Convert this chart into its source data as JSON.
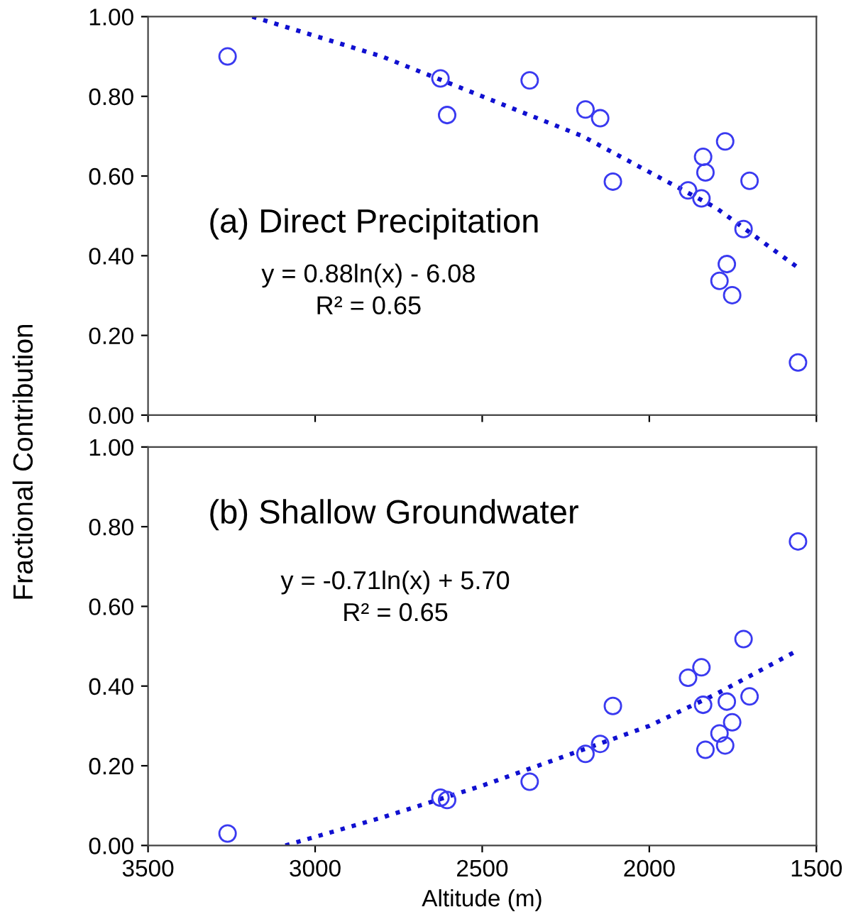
{
  "chart_data": [
    {
      "type": "scatter",
      "annotations": [
        "(a) Direct Precipitation",
        "y = 0.88ln(x) - 6.08",
        "R² = 0.65"
      ],
      "ylabel": "Fractional Contribution",
      "xlim": [
        3500,
        1500
      ],
      "xticks": [
        3500,
        3000,
        2500,
        2000,
        1500
      ],
      "ylim": [
        0,
        1
      ],
      "yticks": [
        {
          "value": 0,
          "label": "0.00"
        },
        {
          "value": 0.2,
          "label": "0.20"
        },
        {
          "value": 0.4,
          "label": "0.40"
        },
        {
          "value": 0.6,
          "label": "0.60"
        },
        {
          "value": 0.8,
          "label": "0.80"
        },
        {
          "value": 1,
          "label": "1.00"
        }
      ],
      "tick_labels": "y",
      "grid": false,
      "legend": false,
      "series": [
        {
          "type": "scatter",
          "marker": "circle",
          "color": "#3a3af0",
          "x": [
            3262,
            2625,
            2605,
            2358,
            2191,
            2147,
            2109,
            1884,
            1839,
            1832,
            1844,
            1773,
            1700,
            1718,
            1768,
            1790,
            1752,
            1555
          ],
          "values": [
            0.9,
            0.845,
            0.753,
            0.84,
            0.767,
            0.745,
            0.586,
            0.564,
            0.648,
            0.609,
            0.544,
            0.687,
            0.588,
            0.467,
            0.379,
            0.337,
            0.301,
            0.132
          ]
        },
        {
          "type": "line",
          "line_style": "dotted",
          "marker": "none",
          "color": "#1010d0",
          "x": [
            3188,
            2800,
            2500,
            2200,
            2000,
            1800,
            1555
          ],
          "values": [
            1.0,
            0.9,
            0.8,
            0.7,
            0.61,
            0.52,
            0.37
          ]
        }
      ]
    },
    {
      "type": "scatter",
      "annotations": [
        "(b) Shallow Groundwater",
        "y = -0.71ln(x) + 5.70",
        "R² = 0.65"
      ],
      "xlabel": "Altitude (m)",
      "xlim": [
        3500,
        1500
      ],
      "xticks": [
        3500,
        3000,
        2500,
        2000,
        1500
      ],
      "ylim": [
        0,
        1
      ],
      "yticks": [
        {
          "value": 0,
          "label": "0.00"
        },
        {
          "value": 0.2,
          "label": "0.20"
        },
        {
          "value": 0.4,
          "label": "0.40"
        },
        {
          "value": 0.6,
          "label": "0.60"
        },
        {
          "value": 0.8,
          "label": "0.80"
        },
        {
          "value": 1,
          "label": "1.00"
        }
      ],
      "grid": false,
      "legend": false,
      "series": [
        {
          "type": "scatter",
          "marker": "circle",
          "color": "#3a3af0",
          "x": [
            3262,
            2625,
            2605,
            2358,
            2191,
            2147,
            2109,
            1884,
            1844,
            1839,
            1768,
            1700,
            1718,
            1752,
            1790,
            1832,
            1773,
            1555
          ],
          "values": [
            0.03,
            0.12,
            0.114,
            0.16,
            0.23,
            0.255,
            0.35,
            0.421,
            0.447,
            0.353,
            0.361,
            0.374,
            0.518,
            0.309,
            0.281,
            0.24,
            0.251,
            0.763
          ]
        },
        {
          "type": "line",
          "line_style": "dotted",
          "marker": "none",
          "color": "#1010d0",
          "x": [
            3089,
            2800,
            2500,
            2200,
            2000,
            1800,
            1555
          ],
          "values": [
            0.0,
            0.07,
            0.15,
            0.24,
            0.3,
            0.38,
            0.49
          ]
        }
      ]
    }
  ]
}
